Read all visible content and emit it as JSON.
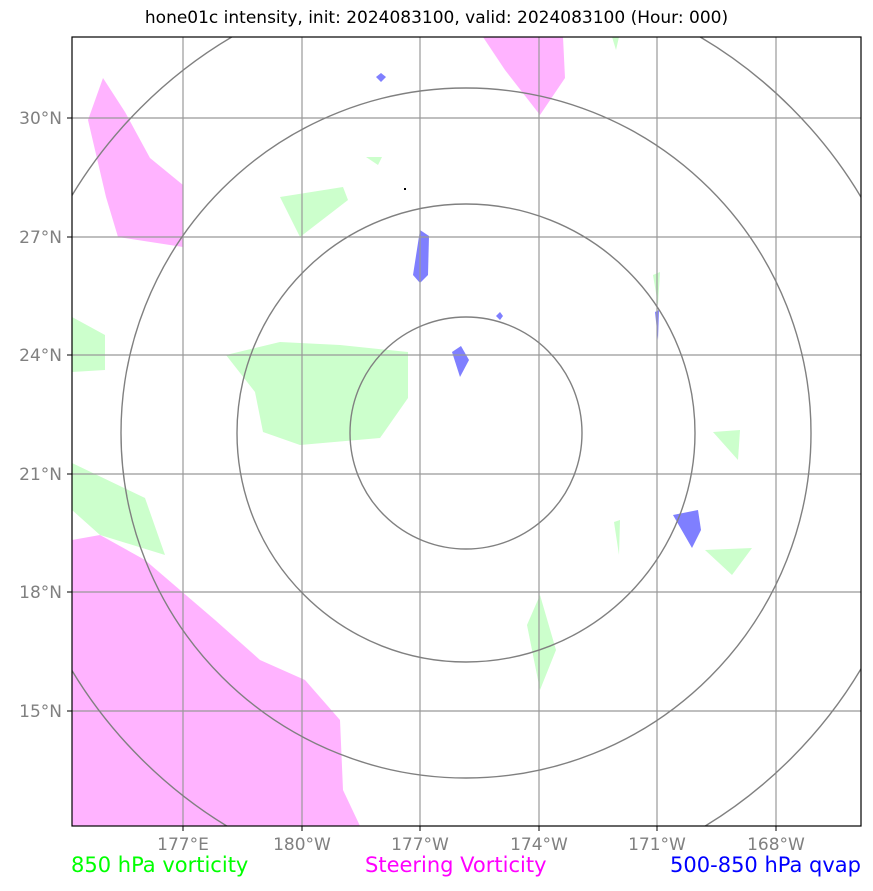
{
  "title": "hone01c intensity, init: 2024083100, valid: 2024083100 (Hour: 000)",
  "latitude_labels": [
    "30°N",
    "27°N",
    "24°N",
    "21°N",
    "18°N",
    "15°N"
  ],
  "longitude_labels": [
    "177°E",
    "180°W",
    "177°W",
    "174°W",
    "171°W",
    "168°W"
  ],
  "legend": {
    "vorticity_850": "850 hPa vorticity",
    "steering_vorticity": "Steering Vorticity",
    "qvap": "500-850 hPa qvap"
  },
  "colors": {
    "vorticity_850": "#ccffcc",
    "steering_vorticity": "#ffb3ff",
    "qvap": "#7f7fff",
    "grid": "#999999",
    "rings": "#808080"
  }
}
